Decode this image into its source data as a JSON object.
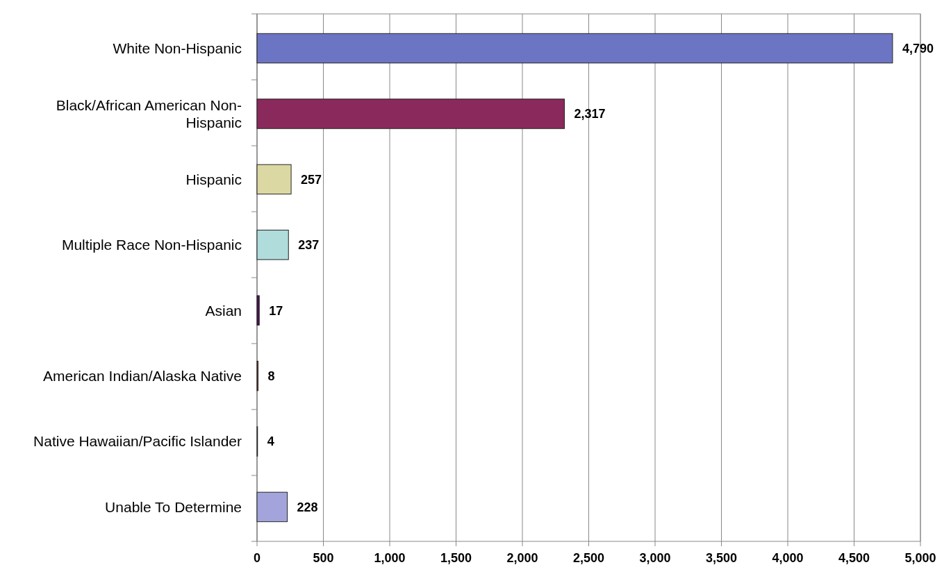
{
  "chart_data": {
    "type": "bar",
    "orientation": "horizontal",
    "categories": [
      "White Non-Hispanic",
      "Black/African American Non-Hispanic",
      "Hispanic",
      "Multiple Race Non-Hispanic",
      "Asian",
      "American Indian/Alaska Native",
      "Native Hawaiian/Pacific Islander",
      "Unable To Determine"
    ],
    "values": [
      4790,
      2317,
      257,
      237,
      17,
      8,
      4,
      228
    ],
    "colors": [
      "#6c74c4",
      "#8a2a5c",
      "#dcd8a4",
      "#b0dcdc",
      "#4c1254",
      "#8c3a32",
      "#1f4f8c",
      "#a4a4dc"
    ],
    "value_labels": [
      "4,790",
      "2,317",
      "257",
      "237",
      "17",
      "8",
      "4",
      "228"
    ],
    "xlim": [
      0,
      5000
    ],
    "xticks": [
      {
        "value": 0,
        "label": "0"
      },
      {
        "value": 500,
        "label": "500"
      },
      {
        "value": 1000,
        "label": "1,000"
      },
      {
        "value": 1500,
        "label": "1,500"
      },
      {
        "value": 2000,
        "label": "2,000"
      },
      {
        "value": 2500,
        "label": "2,500"
      },
      {
        "value": 3000,
        "label": "3,000"
      },
      {
        "value": 3500,
        "label": "3,500"
      },
      {
        "value": 4000,
        "label": "4,000"
      },
      {
        "value": 4500,
        "label": "4,500"
      },
      {
        "value": 5000,
        "label": "5,000"
      }
    ],
    "grid": "x"
  }
}
